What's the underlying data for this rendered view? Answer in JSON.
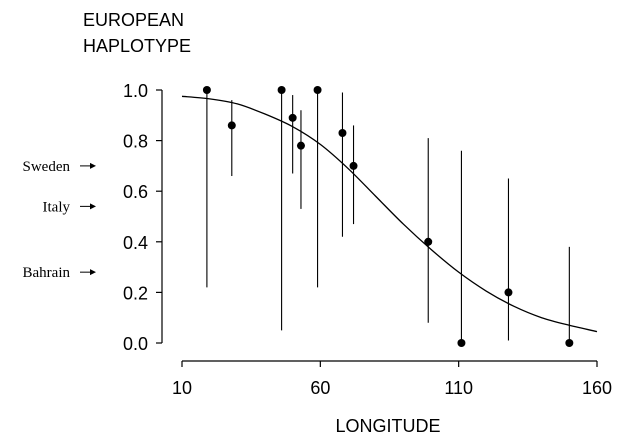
{
  "chart_data": {
    "type": "scatter",
    "title": "",
    "ylabel_lines": [
      "EUROPEAN",
      "HAPLOTYPE"
    ],
    "xlabel": "LONGITUDE",
    "xlim": [
      5,
      165
    ],
    "ylim": [
      -0.07,
      1.07
    ],
    "xticks": [
      10,
      60,
      110,
      160
    ],
    "yticks": [
      0.0,
      0.2,
      0.4,
      0.6,
      0.8,
      1.0
    ],
    "ytick_labels": [
      "0.0",
      "0.2",
      "0.4",
      "0.6",
      "0.8",
      "1.0"
    ],
    "grid": false,
    "points": [
      {
        "x": 19,
        "y": 1.0,
        "low": 0.22,
        "high": 1.0
      },
      {
        "x": 28,
        "y": 0.86,
        "low": 0.66,
        "high": 0.96
      },
      {
        "x": 46,
        "y": 1.0,
        "low": 0.05,
        "high": 1.0
      },
      {
        "x": 50,
        "y": 0.89,
        "low": 0.67,
        "high": 0.98
      },
      {
        "x": 53,
        "y": 0.78,
        "low": 0.53,
        "high": 0.92
      },
      {
        "x": 59,
        "y": 1.0,
        "low": 0.22,
        "high": 1.0
      },
      {
        "x": 68,
        "y": 0.83,
        "low": 0.42,
        "high": 0.99
      },
      {
        "x": 72,
        "y": 0.7,
        "low": 0.47,
        "high": 0.86
      },
      {
        "x": 99,
        "y": 0.4,
        "low": 0.08,
        "high": 0.81
      },
      {
        "x": 111,
        "y": 0.0,
        "low": 0.0,
        "high": 0.76
      },
      {
        "x": 128,
        "y": 0.2,
        "low": 0.01,
        "high": 0.65
      },
      {
        "x": 150,
        "y": 0.0,
        "low": 0.0,
        "high": 0.38
      }
    ],
    "curve": [
      {
        "x": 10,
        "y": 0.975
      },
      {
        "x": 20,
        "y": 0.965
      },
      {
        "x": 30,
        "y": 0.945
      },
      {
        "x": 40,
        "y": 0.905
      },
      {
        "x": 50,
        "y": 0.855
      },
      {
        "x": 60,
        "y": 0.785
      },
      {
        "x": 70,
        "y": 0.69
      },
      {
        "x": 80,
        "y": 0.58
      },
      {
        "x": 90,
        "y": 0.47
      },
      {
        "x": 100,
        "y": 0.37
      },
      {
        "x": 110,
        "y": 0.28
      },
      {
        "x": 120,
        "y": 0.205
      },
      {
        "x": 130,
        "y": 0.145
      },
      {
        "x": 140,
        "y": 0.1
      },
      {
        "x": 150,
        "y": 0.07
      },
      {
        "x": 160,
        "y": 0.045
      }
    ],
    "annotations": [
      {
        "label": "Sweden",
        "y": 0.7
      },
      {
        "label": "Italy",
        "y": 0.54
      },
      {
        "label": "Bahrain",
        "y": 0.28
      }
    ]
  }
}
